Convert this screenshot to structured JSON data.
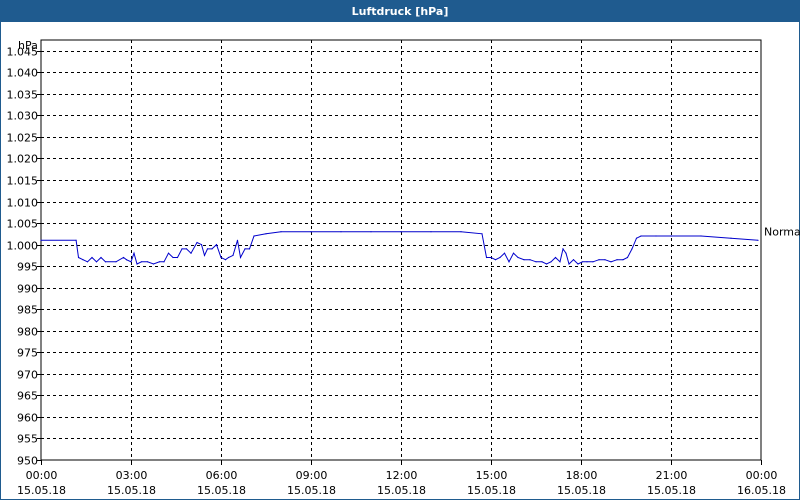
{
  "window": {
    "title": "Luftdruck [hPa]"
  },
  "chart_data": {
    "type": "line",
    "title": "Luftdruck [hPa]",
    "ylabel": "hPa",
    "ylim": [
      950,
      1045
    ],
    "yticks": [
      "1.045",
      "1.040",
      "1.035",
      "1.030",
      "1.025",
      "1.020",
      "1.015",
      "1.010",
      "1.005",
      "1.000",
      "995",
      "990",
      "985",
      "980",
      "975",
      "970",
      "965",
      "960",
      "955",
      "950"
    ],
    "xlim": [
      0,
      24
    ],
    "xticks": [
      {
        "time": "00:00",
        "date": "15.05.18"
      },
      {
        "time": "03:00",
        "date": "15.05.18"
      },
      {
        "time": "06:00",
        "date": "15.05.18"
      },
      {
        "time": "09:00",
        "date": "15.05.18"
      },
      {
        "time": "12:00",
        "date": "15.05.18"
      },
      {
        "time": "15:00",
        "date": "15.05.18"
      },
      {
        "time": "18:00",
        "date": "15.05.18"
      },
      {
        "time": "21:00",
        "date": "15.05.18"
      },
      {
        "time": "00:00",
        "date": "16.05.18"
      }
    ],
    "grid": true,
    "series": [
      {
        "name": "Normal",
        "color": "#0000cc",
        "x": [
          0,
          1.17,
          1.25,
          1.4,
          1.55,
          1.7,
          1.85,
          2.0,
          2.15,
          2.5,
          2.75,
          2.85,
          3.0,
          3.1,
          3.2,
          3.35,
          3.55,
          3.75,
          3.95,
          4.1,
          4.25,
          4.4,
          4.55,
          4.7,
          4.85,
          5.0,
          5.2,
          5.35,
          5.45,
          5.55,
          5.7,
          5.85,
          6.0,
          6.15,
          6.25,
          6.4,
          6.55,
          6.65,
          6.8,
          6.95,
          7.1,
          7.5,
          8.0,
          9.0,
          10.0,
          11.0,
          12.0,
          13.0,
          14.0,
          14.7,
          14.85,
          15.0,
          15.15,
          15.3,
          15.45,
          15.6,
          15.75,
          15.9,
          16.1,
          16.3,
          16.5,
          16.7,
          16.85,
          17.0,
          17.15,
          17.3,
          17.4,
          17.5,
          17.6,
          17.75,
          17.9,
          18.05,
          18.2,
          18.4,
          18.6,
          18.8,
          19.0,
          19.2,
          19.4,
          19.55,
          19.7,
          19.85,
          20.0,
          20.5,
          21.0,
          22.0,
          23.0,
          23.9
        ],
        "y": [
          1001,
          1001,
          997,
          996.5,
          996,
          997,
          996,
          997,
          996,
          996,
          997,
          996.5,
          996,
          998,
          995.5,
          996,
          996,
          995.5,
          996,
          996,
          998,
          997,
          997,
          999,
          999,
          998,
          1000.5,
          1000,
          997.5,
          999,
          999,
          1000,
          997,
          996.5,
          997,
          997.5,
          1001,
          997,
          999,
          999,
          1002,
          1002.5,
          1003,
          1003,
          1003,
          1003,
          1003,
          1003,
          1003,
          1002.5,
          997,
          997,
          996.5,
          997,
          998,
          996,
          998,
          997,
          996.5,
          996.5,
          996,
          996,
          995.5,
          996,
          997,
          996,
          999,
          998,
          995.5,
          996.5,
          995.5,
          996,
          996,
          996,
          996.5,
          996.5,
          996,
          996.5,
          996.5,
          997,
          999,
          1001.5,
          1002,
          1002,
          1002,
          1002,
          1001.5,
          1001
        ]
      }
    ]
  }
}
